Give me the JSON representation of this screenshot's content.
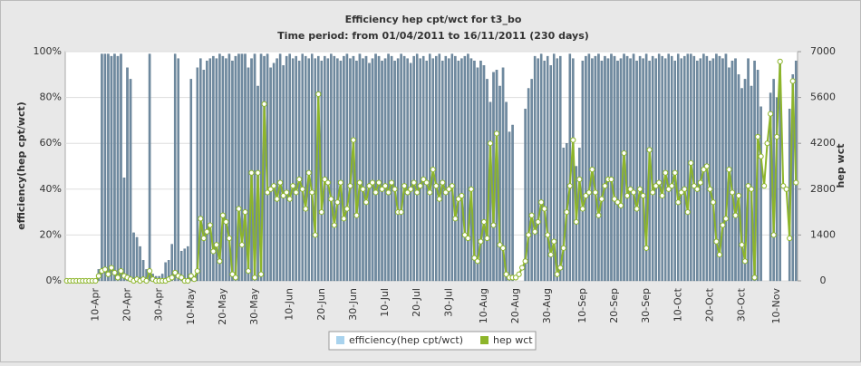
{
  "chart_data": {
    "type": "bar-line",
    "title": "Efficiency hep cpt/wct for t3_bo",
    "subtitle": "Time period: from 01/04/2011 to 16/11/2011 (230 days)",
    "y_label": "efficiency(hep cpt/wct)",
    "y2_label": "hep  wct",
    "categories": [
      null,
      null,
      null,
      null,
      null,
      null,
      null,
      null,
      null,
      "10-Apr",
      null,
      null,
      null,
      null,
      null,
      null,
      null,
      null,
      null,
      "20-Apr",
      null,
      null,
      null,
      null,
      null,
      null,
      null,
      null,
      null,
      "30-Apr",
      null,
      null,
      null,
      null,
      null,
      null,
      null,
      null,
      null,
      "10-May",
      null,
      null,
      null,
      null,
      null,
      null,
      null,
      null,
      null,
      "20-May",
      null,
      null,
      null,
      null,
      null,
      null,
      null,
      null,
      null,
      "30-May",
      null,
      null,
      null,
      null,
      null,
      null,
      null,
      null,
      null,
      null,
      "10-Jun",
      null,
      null,
      null,
      null,
      null,
      null,
      null,
      null,
      null,
      "20-Jun",
      null,
      null,
      null,
      null,
      null,
      null,
      null,
      null,
      null,
      "30-Jun",
      null,
      null,
      null,
      null,
      null,
      null,
      null,
      null,
      null,
      "10-Jul",
      null,
      null,
      null,
      null,
      null,
      null,
      null,
      null,
      null,
      "20-Jul",
      null,
      null,
      null,
      null,
      null,
      null,
      null,
      null,
      null,
      "30-Jul",
      null,
      null,
      null,
      null,
      null,
      null,
      null,
      null,
      null,
      null,
      "10-Aug",
      null,
      null,
      null,
      null,
      null,
      null,
      null,
      null,
      null,
      "20-Aug",
      null,
      null,
      null,
      null,
      null,
      null,
      null,
      null,
      null,
      "30-Aug",
      null,
      null,
      null,
      null,
      null,
      null,
      null,
      null,
      null,
      null,
      "10-Sep",
      null,
      null,
      null,
      null,
      null,
      null,
      null,
      null,
      null,
      "20-Sep",
      null,
      null,
      null,
      null,
      null,
      null,
      null,
      null,
      null,
      "30-Sep",
      null,
      null,
      null,
      null,
      null,
      null,
      null,
      null,
      null,
      "10-Oct",
      null,
      null,
      null,
      null,
      null,
      null,
      null,
      null,
      null,
      "20-Oct",
      null,
      null,
      null,
      null,
      null,
      null,
      null,
      null,
      null,
      "30-Oct",
      null,
      null,
      null,
      null,
      null,
      null,
      null,
      null,
      null,
      null,
      "10-Nov",
      null,
      null,
      null,
      null,
      null,
      null
    ],
    "series": [
      {
        "name": "efficiency(hep cpt/wct)",
        "color": "#6f8aa0",
        "kind": "bar",
        "values": [
          0,
          0,
          0,
          0,
          0,
          0,
          0,
          0,
          0,
          0,
          5,
          99,
          99,
          99,
          98,
          99,
          98,
          99,
          45,
          93,
          88,
          21,
          19,
          15,
          9,
          5,
          99,
          3,
          2,
          2,
          3,
          8,
          9,
          16,
          99,
          97,
          13,
          14,
          15,
          88,
          2,
          93,
          97,
          92,
          96,
          97,
          98,
          97,
          99,
          98,
          97,
          99,
          96,
          98,
          99,
          99,
          99,
          93,
          97,
          99,
          85,
          99,
          98,
          99,
          93,
          95,
          97,
          99,
          94,
          98,
          99,
          97,
          98,
          96,
          99,
          98,
          97,
          99,
          97,
          98,
          96,
          98,
          97,
          99,
          98,
          97,
          96,
          98,
          99,
          97,
          98,
          96,
          99,
          97,
          98,
          95,
          97,
          99,
          98,
          96,
          97,
          99,
          98,
          96,
          97,
          99,
          98,
          97,
          95,
          98,
          99,
          97,
          98,
          96,
          99,
          97,
          98,
          99,
          96,
          98,
          97,
          99,
          98,
          96,
          97,
          98,
          99,
          97,
          96,
          93,
          96,
          94,
          88,
          78,
          91,
          92,
          85,
          93,
          78,
          65,
          68,
          0,
          0,
          0,
          75,
          84,
          88,
          98,
          97,
          99,
          96,
          98,
          94,
          99,
          97,
          98,
          58,
          60,
          99,
          97,
          50,
          58,
          96,
          98,
          99,
          97,
          98,
          99,
          96,
          98,
          97,
          99,
          98,
          96,
          97,
          99,
          98,
          97,
          99,
          96,
          98,
          97,
          99,
          96,
          98,
          97,
          99,
          98,
          97,
          99,
          98,
          96,
          99,
          97,
          98,
          99,
          99,
          98,
          96,
          97,
          99,
          98,
          96,
          97,
          99,
          98,
          97,
          99,
          93,
          96,
          97,
          90,
          84,
          88,
          97,
          85,
          96,
          92,
          76,
          0,
          0,
          82,
          88,
          80,
          96,
          0,
          0,
          75,
          90,
          96
        ]
      },
      {
        "name": "hep  wct",
        "color": "#8db52a",
        "kind": "line",
        "axis": "y2",
        "values": [
          0,
          0,
          0,
          0,
          0,
          0,
          0,
          0,
          0,
          0,
          150,
          300,
          350,
          200,
          400,
          250,
          100,
          300,
          150,
          100,
          50,
          0,
          50,
          0,
          50,
          0,
          300,
          50,
          0,
          0,
          0,
          0,
          50,
          100,
          250,
          150,
          100,
          0,
          0,
          150,
          50,
          300,
          1900,
          1300,
          1500,
          1700,
          900,
          1100,
          600,
          2000,
          1800,
          1300,
          200,
          100,
          2200,
          1100,
          2100,
          300,
          3300,
          100,
          3300,
          200,
          5400,
          2700,
          2800,
          2900,
          2500,
          3000,
          2600,
          2700,
          2500,
          2900,
          2700,
          3100,
          2800,
          2200,
          3300,
          2700,
          1400,
          5700,
          2100,
          3100,
          3000,
          2500,
          1700,
          2400,
          3000,
          1900,
          2200,
          2900,
          4300,
          2000,
          3000,
          2800,
          2400,
          2900,
          3000,
          2700,
          3000,
          2800,
          2900,
          2700,
          3000,
          2800,
          2100,
          2100,
          2900,
          2700,
          2800,
          3000,
          2700,
          2900,
          3100,
          3000,
          2700,
          3400,
          2900,
          2500,
          3000,
          2700,
          2800,
          2900,
          1900,
          2500,
          2600,
          1400,
          1300,
          2800,
          700,
          600,
          1200,
          1800,
          1300,
          4200,
          1700,
          4500,
          1100,
          1000,
          200,
          100,
          100,
          100,
          200,
          400,
          600,
          1400,
          2000,
          1500,
          1800,
          2400,
          2200,
          1400,
          800,
          1200,
          200,
          400,
          1000,
          2100,
          2900,
          4300,
          1800,
          3100,
          2200,
          2600,
          2700,
          3400,
          2700,
          2000,
          2500,
          2900,
          3100,
          3100,
          2500,
          2400,
          2300,
          3900,
          2600,
          2800,
          2700,
          2200,
          2800,
          2600,
          1000,
          4000,
          2700,
          2900,
          3000,
          2600,
          3300,
          2800,
          2900,
          3300,
          2400,
          2700,
          2800,
          2100,
          3600,
          2900,
          2800,
          3000,
          3400,
          3500,
          2800,
          2400,
          1200,
          800,
          1700,
          1900,
          3400,
          2700,
          2000,
          2600,
          1100,
          600,
          2900,
          2800,
          100,
          4400,
          3800,
          2900,
          4200,
          5100,
          1400,
          4400,
          6700,
          2900,
          2800,
          1300,
          6100,
          3000
        ]
      }
    ],
    "ylim": [
      0,
      100
    ],
    "yticks": [
      {
        "value": 0,
        "label": "0%"
      },
      {
        "value": 20,
        "label": "20%"
      },
      {
        "value": 40,
        "label": "40%"
      },
      {
        "value": 60,
        "label": "60%"
      },
      {
        "value": 80,
        "label": "80%"
      },
      {
        "value": 100,
        "label": "100%"
      }
    ],
    "y2lim": [
      0,
      7000
    ],
    "y2ticks": [
      0,
      1400,
      2800,
      4200,
      5600,
      7000
    ]
  }
}
